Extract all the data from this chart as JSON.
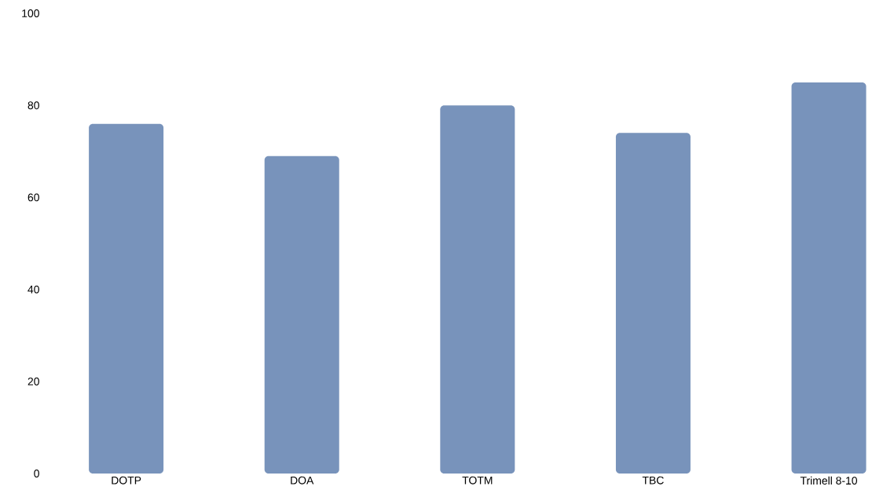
{
  "chart_data": {
    "type": "bar",
    "categories": [
      "DOTP",
      "DOA",
      "TOTM",
      "TBC",
      "Trimell 8-10"
    ],
    "values": [
      76,
      69,
      80,
      74,
      85
    ],
    "color": "#7893bb",
    "ylim": [
      0,
      100
    ],
    "yticks": [
      0,
      20,
      40,
      60,
      80,
      100
    ]
  }
}
